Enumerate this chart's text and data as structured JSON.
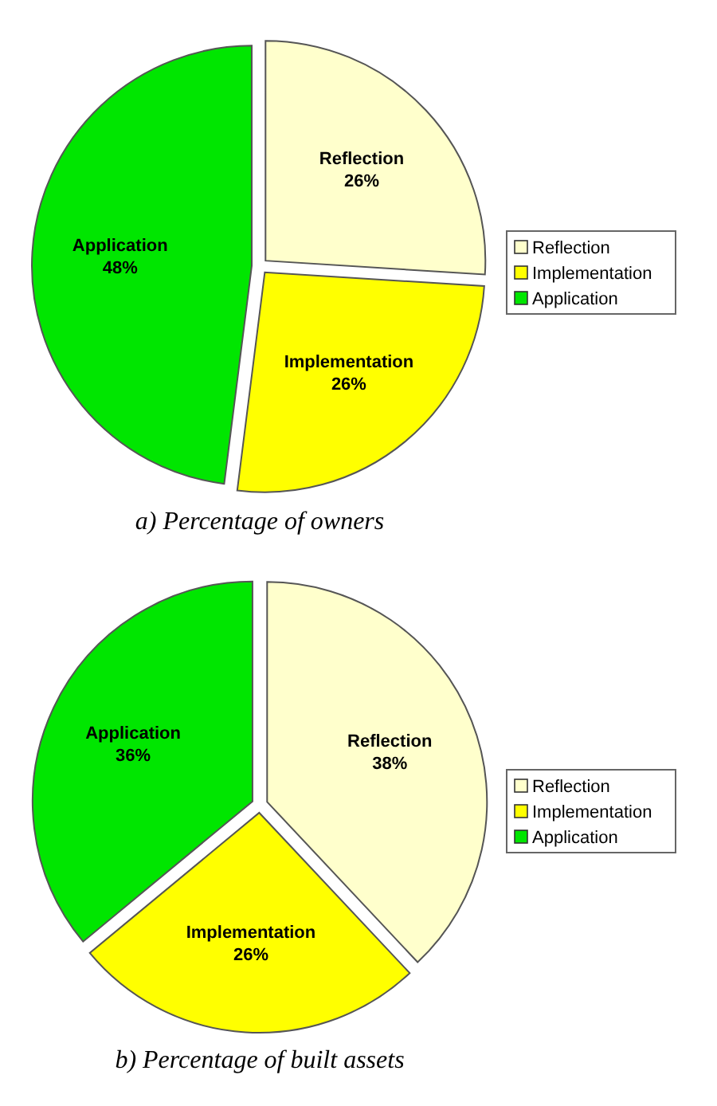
{
  "chart_data": [
    {
      "type": "pie",
      "title": "a) Percentage of owners",
      "categories": [
        "Reflection",
        "Implementation",
        "Application"
      ],
      "values": [
        26,
        26,
        48
      ],
      "value_labels": [
        "26%",
        "26%",
        "48%"
      ],
      "colors": [
        "#ffffcc",
        "#ffff00",
        "#00e600"
      ],
      "legend": "right"
    },
    {
      "type": "pie",
      "title": "b) Percentage of built assets",
      "categories": [
        "Reflection",
        "Implementation",
        "Application"
      ],
      "values": [
        38,
        26,
        36
      ],
      "value_labels": [
        "38%",
        "26%",
        "36%"
      ],
      "colors": [
        "#ffffcc",
        "#ffff00",
        "#00e600"
      ],
      "legend": "right"
    }
  ]
}
